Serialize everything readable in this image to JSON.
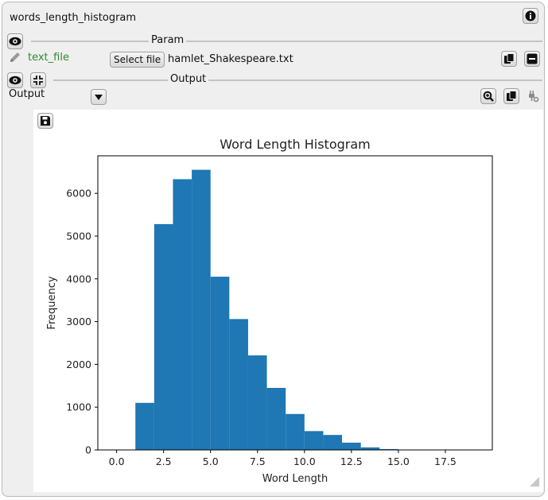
{
  "widget": {
    "title": "words_length_histogram"
  },
  "param_section": {
    "label": "Param",
    "field_label": "text_file",
    "select_button_label": "Select file",
    "file_name": "hamlet_Shakespeare.txt"
  },
  "output_section": {
    "label": "Output",
    "dropdown_value": "Output"
  },
  "icons": {
    "info": "info-icon",
    "eye": "eye-icon",
    "pencil": "pencil-icon",
    "copy": "copy-icon",
    "minus": "minus-icon",
    "collapse": "collapse-arrows-icon",
    "dropdown": "chevron-down-icon",
    "zoom": "zoom-in-icon",
    "plug": "plug-off-icon",
    "save": "save-icon"
  },
  "colors": {
    "bar": "#1f77b4",
    "field_label": "#2e8b2e"
  },
  "chart_data": {
    "type": "bar",
    "title": "Word Length Histogram",
    "xlabel": "Word Length",
    "ylabel": "Frequency",
    "bin_edges": [
      0.0,
      1.0,
      2.0,
      3.0,
      4.0,
      5.0,
      6.0,
      7.0,
      8.0,
      9.0,
      10.0,
      11.0,
      12.0,
      13.0,
      14.0,
      15.0,
      16.0,
      17.0,
      18.0,
      19.0
    ],
    "values": [
      0,
      1100,
      5280,
      6330,
      6550,
      4050,
      3060,
      2210,
      1450,
      840,
      440,
      350,
      170,
      60,
      20,
      5,
      2,
      1,
      1
    ],
    "xlim": [
      -1.0,
      20.0
    ],
    "ylim": [
      0,
      6877
    ],
    "x_ticks": [
      0.0,
      2.5,
      5.0,
      7.5,
      10.0,
      12.5,
      15.0,
      17.5
    ],
    "x_tick_labels": [
      "0.0",
      "2.5",
      "5.0",
      "7.5",
      "10.0",
      "12.5",
      "15.0",
      "17.5"
    ],
    "y_ticks": [
      0,
      1000,
      2000,
      3000,
      4000,
      5000,
      6000
    ],
    "y_tick_labels": [
      "0",
      "1000",
      "2000",
      "3000",
      "4000",
      "5000",
      "6000"
    ],
    "grid": false,
    "legend": "none"
  }
}
